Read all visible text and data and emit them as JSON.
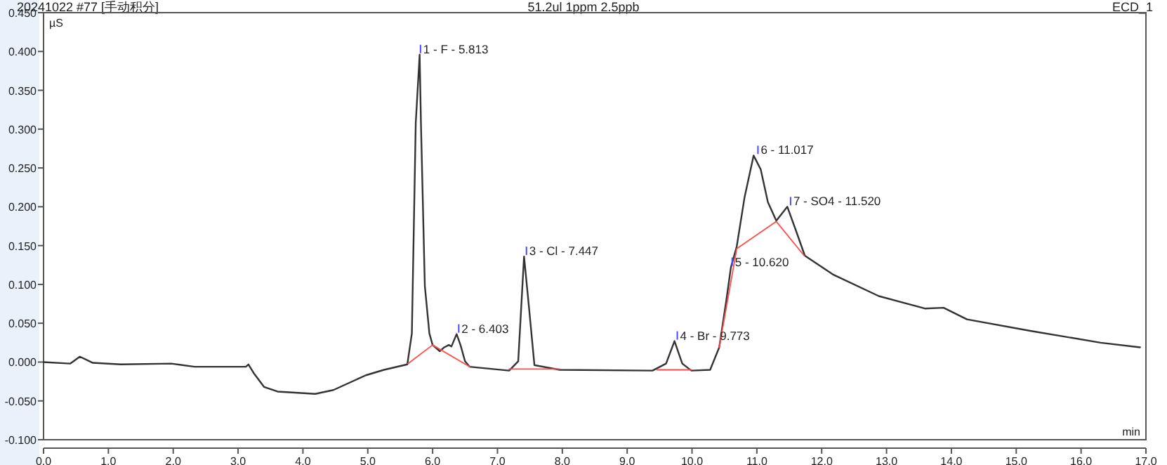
{
  "chart_data": {
    "type": "line",
    "title": "20241022 #77 [手动积分]",
    "subtitle": "51.2ul 1ppm 2.5ppb",
    "ylabel": "µS",
    "xlabel": "min",
    "annotations": [
      "ECD_1",
      {
        "text": "1 - F - 5.813",
        "x": 5.813,
        "y": 0.396
      },
      {
        "text": "2 - 6.403",
        "x": 6.403,
        "y": 0.036
      },
      {
        "text": "3 - Cl - 7.447",
        "x": 7.447,
        "y": 0.136
      },
      {
        "text": "4 - Br - 9.773",
        "x": 9.773,
        "y": 0.027
      },
      {
        "text": "5 - 10.620",
        "x": 10.62,
        "y": 0.122
      },
      {
        "text": "6 - 11.017",
        "x": 11.017,
        "y": 0.266
      },
      {
        "text": "7 - SO4 - 11.520",
        "x": 11.52,
        "y": 0.2
      }
    ],
    "xlim": [
      0,
      17
    ],
    "ylim": [
      -0.1,
      0.45
    ],
    "xticks": [
      {
        "value": 0,
        "label": "0.0"
      },
      {
        "value": 1,
        "label": "1.0"
      },
      {
        "value": 2,
        "label": "2.0"
      },
      {
        "value": 3,
        "label": "3.0"
      },
      {
        "value": 4,
        "label": "4.0"
      },
      {
        "value": 5,
        "label": "5.0"
      },
      {
        "value": 6,
        "label": "6.0"
      },
      {
        "value": 7,
        "label": "7.0"
      },
      {
        "value": 8,
        "label": "8.0"
      },
      {
        "value": 9,
        "label": "9.0"
      },
      {
        "value": 10,
        "label": "10.0"
      },
      {
        "value": 11,
        "label": "11.0"
      },
      {
        "value": 12,
        "label": "12.0"
      },
      {
        "value": 13,
        "label": "13.0"
      },
      {
        "value": 14,
        "label": "14.0"
      },
      {
        "value": 15,
        "label": "15.0"
      },
      {
        "value": 16,
        "label": "16.0"
      },
      {
        "value": 17,
        "label": "17.0"
      }
    ],
    "yticks": [
      {
        "value": -0.1,
        "label": "-0.100"
      },
      {
        "value": -0.05,
        "label": "-0.050"
      },
      {
        "value": 0,
        "label": "0.000"
      },
      {
        "value": 0.05,
        "label": "0.050"
      },
      {
        "value": 0.1,
        "label": "0.100"
      },
      {
        "value": 0.15,
        "label": "0.150"
      },
      {
        "value": 0.2,
        "label": "0.200"
      },
      {
        "value": 0.25,
        "label": "0.250"
      },
      {
        "value": 0.3,
        "label": "0.300"
      },
      {
        "value": 0.35,
        "label": "0.350"
      },
      {
        "value": 0.4,
        "label": "0.400"
      },
      {
        "value": 0.45,
        "label": "0.450"
      }
    ],
    "grid": false,
    "marker": "none",
    "series": [
      {
        "color": "#333333",
        "x": [
          0,
          0.41,
          0.56,
          0.76,
          1.19,
          1.97,
          2.33,
          3.12,
          3.16,
          3.24,
          3.4,
          3.61,
          4.19,
          4.47,
          4.97,
          5.25,
          5.61,
          5.68,
          5.74,
          5.8,
          5.82,
          5.88,
          5.95,
          6.0,
          6.11,
          6.18,
          6.25,
          6.29,
          6.37,
          6.43,
          6.5,
          6.57,
          7.18,
          7.32,
          7.41,
          7.49,
          7.57,
          7.96,
          9.39,
          9.6,
          9.73,
          9.85,
          9.99,
          10.28,
          10.42,
          10.53,
          10.6,
          10.69,
          10.81,
          10.95,
          11.06,
          11.17,
          11.3,
          11.47,
          11.6,
          11.74,
          12.17,
          12.88,
          13.59,
          13.88,
          14.24,
          15.23,
          16.3,
          16.91
        ],
        "values": [
          0,
          -0.002,
          0.007,
          -0.001,
          -0.003,
          -0.002,
          -0.006,
          -0.006,
          -0.003,
          -0.014,
          -0.032,
          -0.038,
          -0.041,
          -0.036,
          -0.017,
          -0.01,
          -0.003,
          0.037,
          0.308,
          0.396,
          0.308,
          0.098,
          0.037,
          0.022,
          0.014,
          0.019,
          0.022,
          0.02,
          0.036,
          0.022,
          0.001,
          -0.006,
          -0.011,
          0.001,
          0.136,
          0.067,
          -0.004,
          -0.01,
          -0.011,
          -0.002,
          0.027,
          -0.002,
          -0.011,
          -0.01,
          0.019,
          0.08,
          0.122,
          0.149,
          0.212,
          0.266,
          0.248,
          0.206,
          0.182,
          0.2,
          0.17,
          0.137,
          0.113,
          0.085,
          0.069,
          0.07,
          0.055,
          0.04,
          0.025,
          0.019
        ]
      },
      {
        "color": "#ff4d4d",
        "x": [
          5.62,
          6.0,
          6.57
        ],
        "values": [
          -0.002,
          0.022,
          -0.006
        ]
      },
      {
        "color": "#ff4d4d",
        "x": [
          7.18,
          7.96
        ],
        "values": [
          -0.009,
          -0.009
        ]
      },
      {
        "color": "#ff4d4d",
        "x": [
          9.46,
          9.99
        ],
        "values": [
          -0.01,
          -0.01
        ]
      },
      {
        "color": "#ff4d4d",
        "x": [
          10.42,
          10.69,
          11.3,
          11.73
        ],
        "values": [
          0.019,
          0.146,
          0.181,
          0.137
        ]
      }
    ]
  }
}
